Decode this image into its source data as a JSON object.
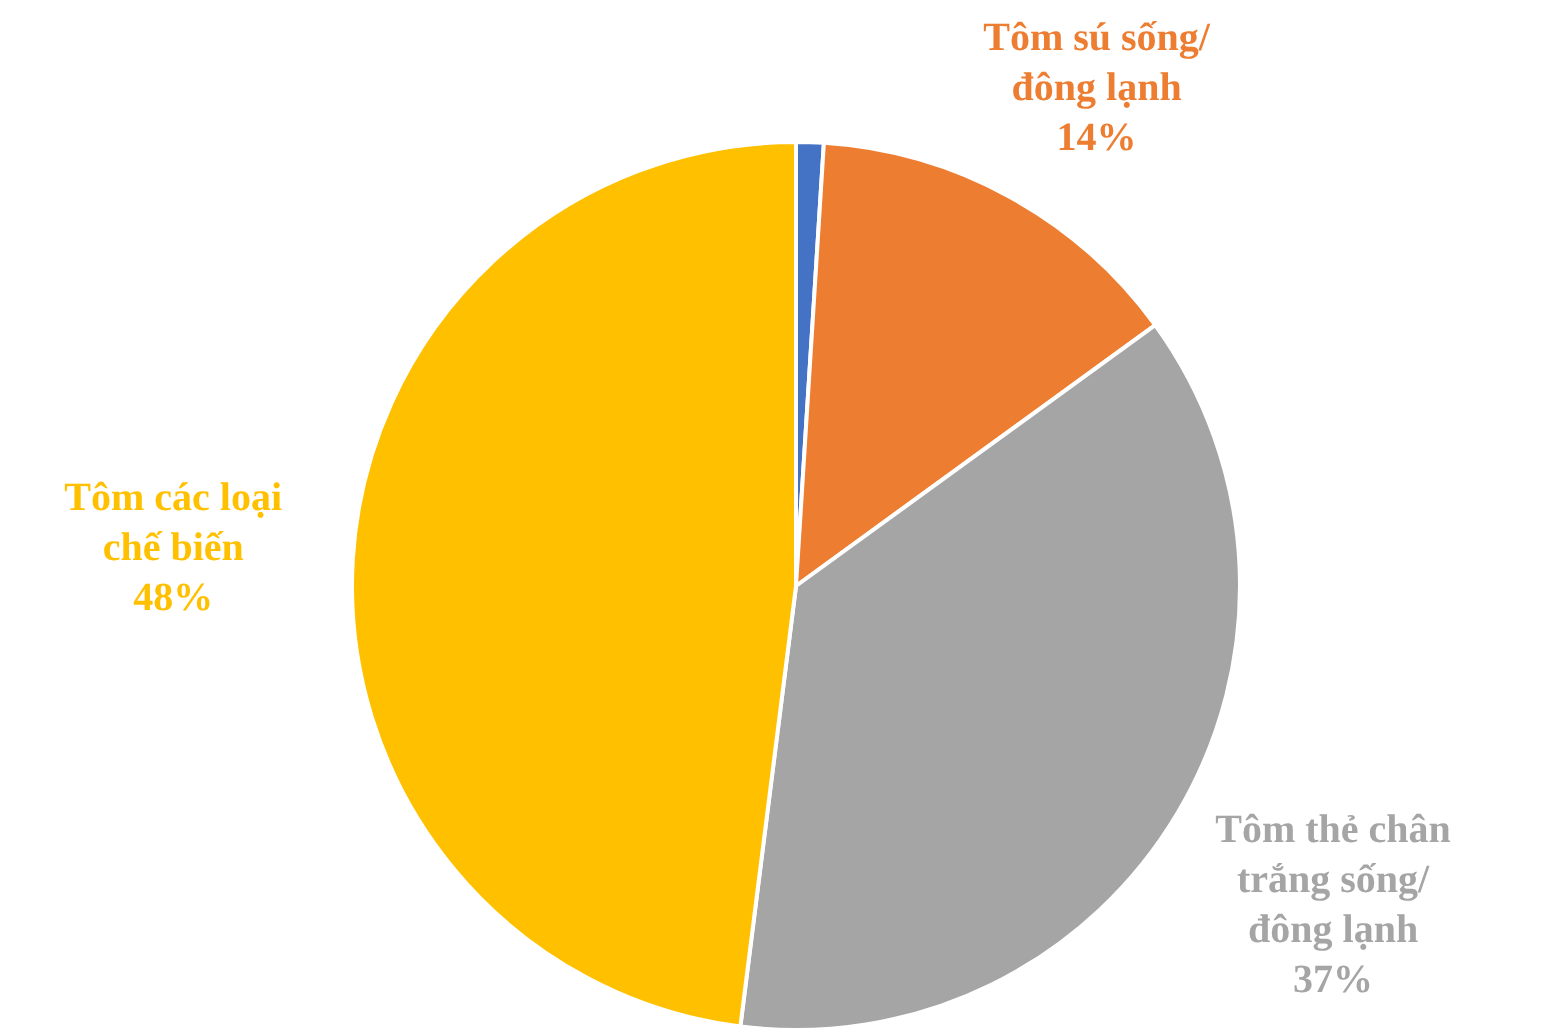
{
  "chart_data": {
    "type": "pie",
    "categories": [
      null,
      "Tôm sú sống/ đông lạnh",
      "Tôm thẻ chân trắng sống/ đông lạnh",
      "Tôm các loại chế biến"
    ],
    "values": [
      1,
      14,
      37,
      48
    ],
    "colors": [
      "#4472c4",
      "#ed7d31",
      "#a5a5a5",
      "#ffc000"
    ],
    "value_labels": [
      null,
      "14%",
      "37%",
      "48%"
    ]
  }
}
